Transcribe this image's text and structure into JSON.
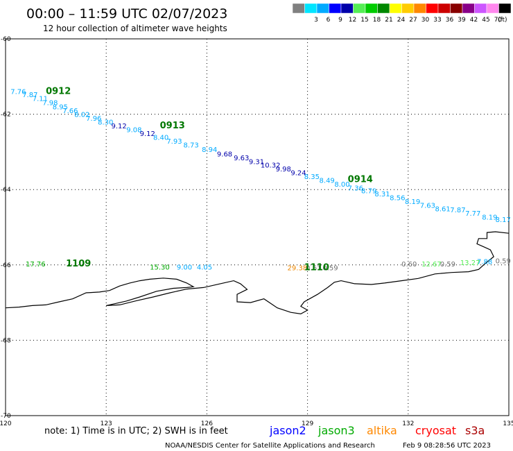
{
  "header": {
    "title": "00:00 – 11:59 UTC 02/07/2023",
    "subtitle": "12 hour collection of altimeter wave heights"
  },
  "legend": {
    "unit": "(ft)",
    "swatches": [
      {
        "label": "",
        "color": "#808080"
      },
      {
        "label": "3",
        "color": "#00e5ff"
      },
      {
        "label": "6",
        "color": "#00aaff"
      },
      {
        "label": "9",
        "color": "#0000ff"
      },
      {
        "label": "12",
        "color": "#0000aa"
      },
      {
        "label": "15",
        "color": "#55ee55"
      },
      {
        "label": "18",
        "color": "#00cc00"
      },
      {
        "label": "21",
        "color": "#008800"
      },
      {
        "label": "24",
        "color": "#ffff00"
      },
      {
        "label": "27",
        "color": "#ffcc00"
      },
      {
        "label": "30",
        "color": "#ff8800"
      },
      {
        "label": "33",
        "color": "#ff0000"
      },
      {
        "label": "36",
        "color": "#cc0000"
      },
      {
        "label": "39",
        "color": "#880000"
      },
      {
        "label": "42",
        "color": "#880088"
      },
      {
        "label": "45",
        "color": "#cc55ff"
      },
      {
        "label": "70",
        "color": "#ff88ee"
      },
      {
        "label": "",
        "color": "#000000"
      }
    ]
  },
  "axes": {
    "lon_labels": [
      "120",
      "123",
      "126",
      "129",
      "132",
      "135"
    ],
    "lat_labels": [
      "-60",
      "-62",
      "-64",
      "-66",
      "-68",
      "-70"
    ],
    "lon_range": [
      120,
      135
    ],
    "lat_range": [
      -60,
      -70
    ]
  },
  "time_labels": [
    {
      "text": "0912",
      "lon": 121.2,
      "lat": -61.46
    },
    {
      "text": "0913",
      "lon": 124.6,
      "lat": -62.38
    },
    {
      "text": "0914",
      "lon": 130.2,
      "lat": -63.8
    },
    {
      "text": "1109",
      "lon": 121.8,
      "lat": -66.04
    },
    {
      "text": "1110",
      "lon": 128.9,
      "lat": -66.14
    }
  ],
  "swh_points": [
    {
      "v": "7.76",
      "lon": 120.15,
      "lat": -61.46,
      "color": "#00aaff"
    },
    {
      "v": "7.87",
      "lon": 120.5,
      "lat": -61.55,
      "color": "#00aaff"
    },
    {
      "v": "7.11",
      "lon": 120.8,
      "lat": -61.65,
      "color": "#00aaff"
    },
    {
      "v": "7.98",
      "lon": 121.1,
      "lat": -61.76,
      "color": "#00aaff"
    },
    {
      "v": "8.95",
      "lon": 121.4,
      "lat": -61.87,
      "color": "#00aaff"
    },
    {
      "v": "7.66",
      "lon": 121.7,
      "lat": -61.97,
      "color": "#00aaff"
    },
    {
      "v": "8.02",
      "lon": 122.05,
      "lat": -62.07,
      "color": "#00aaff"
    },
    {
      "v": "7.96",
      "lon": 122.4,
      "lat": -62.17,
      "color": "#00aaff"
    },
    {
      "v": "8.30",
      "lon": 122.75,
      "lat": -62.27,
      "color": "#00aaff"
    },
    {
      "v": "9.12",
      "lon": 123.15,
      "lat": -62.38,
      "color": "#0000aa"
    },
    {
      "v": "9.08",
      "lon": 123.6,
      "lat": -62.48,
      "color": "#00aaff"
    },
    {
      "v": "9.12",
      "lon": 124.0,
      "lat": -62.58,
      "color": "#0000aa"
    },
    {
      "v": "8.40",
      "lon": 124.4,
      "lat": -62.68,
      "color": "#00aaff"
    },
    {
      "v": "7.93",
      "lon": 124.8,
      "lat": -62.78,
      "color": "#00aaff"
    },
    {
      "v": "8.73",
      "lon": 125.3,
      "lat": -62.88,
      "color": "#00aaff"
    },
    {
      "v": "8.94",
      "lon": 125.85,
      "lat": -63.0,
      "color": "#00aaff"
    },
    {
      "v": "9.68",
      "lon": 126.3,
      "lat": -63.12,
      "color": "#0000aa"
    },
    {
      "v": "9.63",
      "lon": 126.8,
      "lat": -63.22,
      "color": "#0000aa"
    },
    {
      "v": "9.31",
      "lon": 127.25,
      "lat": -63.32,
      "color": "#0000aa"
    },
    {
      "v": "10.32",
      "lon": 127.6,
      "lat": -63.42,
      "color": "#0000aa"
    },
    {
      "v": "9.98",
      "lon": 128.05,
      "lat": -63.52,
      "color": "#0000aa"
    },
    {
      "v": "9.24",
      "lon": 128.5,
      "lat": -63.62,
      "color": "#0000aa"
    },
    {
      "v": "8.35",
      "lon": 128.9,
      "lat": -63.72,
      "color": "#00aaff"
    },
    {
      "v": "8.49",
      "lon": 129.35,
      "lat": -63.82,
      "color": "#00aaff"
    },
    {
      "v": "8.00",
      "lon": 129.8,
      "lat": -63.92,
      "color": "#00aaff"
    },
    {
      "v": "7.36",
      "lon": 130.2,
      "lat": -64.02,
      "color": "#00aaff"
    },
    {
      "v": "8.79",
      "lon": 130.6,
      "lat": -64.1,
      "color": "#00aaff"
    },
    {
      "v": "8.31",
      "lon": 131.0,
      "lat": -64.18,
      "color": "#00aaff"
    },
    {
      "v": "8.56",
      "lon": 131.45,
      "lat": -64.28,
      "color": "#00aaff"
    },
    {
      "v": "8.19",
      "lon": 131.9,
      "lat": -64.38,
      "color": "#00aaff"
    },
    {
      "v": "7.63",
      "lon": 132.35,
      "lat": -64.48,
      "color": "#00aaff"
    },
    {
      "v": "8.61",
      "lon": 132.8,
      "lat": -64.58,
      "color": "#00aaff"
    },
    {
      "v": "7.87",
      "lon": 133.25,
      "lat": -64.6,
      "color": "#00aaff"
    },
    {
      "v": "7.77",
      "lon": 133.7,
      "lat": -64.7,
      "color": "#00aaff"
    },
    {
      "v": "8.19",
      "lon": 134.2,
      "lat": -64.8,
      "color": "#00aaff"
    },
    {
      "v": "8.17",
      "lon": 134.6,
      "lat": -64.86,
      "color": "#00aaff"
    },
    {
      "v": "17.76",
      "lon": 120.6,
      "lat": -66.04,
      "color": "#00aa00"
    },
    {
      "v": "15.30",
      "lon": 124.3,
      "lat": -66.12,
      "color": "#00aa00"
    },
    {
      "v": "9.00",
      "lon": 125.1,
      "lat": -66.12,
      "color": "#00aaff"
    },
    {
      "v": "4.05",
      "lon": 125.7,
      "lat": -66.12,
      "color": "#00aaff"
    },
    {
      "v": "29.38",
      "lon": 128.4,
      "lat": -66.14,
      "color": "#ee8800"
    },
    {
      "v": "0.61",
      "lon": 128.95,
      "lat": -66.14,
      "color": "#707070"
    },
    {
      "v": "0.59",
      "lon": 129.45,
      "lat": -66.14,
      "color": "#707070"
    },
    {
      "v": "0.60",
      "lon": 131.8,
      "lat": -66.04,
      "color": "#707070"
    },
    {
      "v": "12.67",
      "lon": 132.4,
      "lat": -66.04,
      "color": "#55ee55"
    },
    {
      "v": "0.59",
      "lon": 132.95,
      "lat": -66.04,
      "color": "#707070"
    },
    {
      "v": "13.27",
      "lon": 133.55,
      "lat": -66.0,
      "color": "#55ee55"
    },
    {
      "v": "7.88",
      "lon": 134.05,
      "lat": -65.98,
      "color": "#00aaff"
    },
    {
      "v": "0.59",
      "lon": 134.6,
      "lat": -65.96,
      "color": "#707070"
    }
  ],
  "coastline": [
    [
      120.0,
      -67.14
    ],
    [
      120.4,
      -67.12
    ],
    [
      120.8,
      -67.08
    ],
    [
      121.2,
      -67.06
    ],
    [
      121.6,
      -66.98
    ],
    [
      122.0,
      -66.9
    ],
    [
      122.4,
      -66.74
    ],
    [
      122.8,
      -66.72
    ],
    [
      123.1,
      -66.68
    ],
    [
      123.4,
      -66.56
    ],
    [
      123.7,
      -66.48
    ],
    [
      124.0,
      -66.42
    ],
    [
      124.3,
      -66.38
    ],
    [
      124.7,
      -66.35
    ],
    [
      125.1,
      -66.38
    ],
    [
      125.4,
      -66.48
    ],
    [
      125.6,
      -66.58
    ],
    [
      125.4,
      -66.6
    ],
    [
      125.0,
      -66.62
    ],
    [
      124.5,
      -66.7
    ],
    [
      124.0,
      -66.85
    ],
    [
      123.6,
      -66.96
    ],
    [
      123.2,
      -67.04
    ],
    [
      123.0,
      -67.08
    ],
    [
      123.4,
      -67.06
    ],
    [
      123.9,
      -66.95
    ],
    [
      124.4,
      -66.85
    ],
    [
      124.9,
      -66.74
    ],
    [
      125.4,
      -66.64
    ],
    [
      125.9,
      -66.6
    ],
    [
      126.4,
      -66.5
    ],
    [
      126.8,
      -66.42
    ],
    [
      127.0,
      -66.5
    ],
    [
      127.2,
      -66.65
    ],
    [
      126.9,
      -66.78
    ],
    [
      126.9,
      -66.98
    ],
    [
      127.3,
      -67.0
    ],
    [
      127.7,
      -66.9
    ],
    [
      128.1,
      -67.14
    ],
    [
      128.5,
      -67.26
    ],
    [
      128.8,
      -67.3
    ],
    [
      129.0,
      -67.2
    ],
    [
      128.8,
      -67.1
    ],
    [
      128.9,
      -66.98
    ],
    [
      129.3,
      -66.78
    ],
    [
      129.6,
      -66.6
    ],
    [
      129.8,
      -66.46
    ],
    [
      130.0,
      -66.42
    ],
    [
      130.4,
      -66.5
    ],
    [
      130.9,
      -66.52
    ],
    [
      131.3,
      -66.48
    ],
    [
      131.8,
      -66.42
    ],
    [
      132.3,
      -66.36
    ],
    [
      132.8,
      -66.24
    ],
    [
      133.3,
      -66.2
    ],
    [
      133.8,
      -66.18
    ],
    [
      134.1,
      -66.12
    ],
    [
      134.3,
      -65.96
    ],
    [
      134.55,
      -65.78
    ],
    [
      134.45,
      -65.6
    ],
    [
      134.25,
      -65.52
    ],
    [
      134.05,
      -65.44
    ],
    [
      134.1,
      -65.3
    ],
    [
      134.35,
      -65.3
    ],
    [
      134.35,
      -65.14
    ],
    [
      134.6,
      -65.12
    ],
    [
      135.0,
      -65.16
    ]
  ],
  "footer": {
    "note": "note: 1) Time is in UTC; 2) SWH is in feet",
    "satellites": [
      {
        "name": "jason2",
        "color": "#0000ff"
      },
      {
        "name": "jason3",
        "color": "#00aa00"
      },
      {
        "name": "altika",
        "color": "#ff8800"
      },
      {
        "name": "cryosat",
        "color": "#ff0000"
      },
      {
        "name": "s3a",
        "color": "#aa0000"
      }
    ],
    "credit": "NOAA/NESDIS Center for Satellite Applications and Research",
    "timestamp": "Feb  9 08:28:56 UTC 2023"
  }
}
